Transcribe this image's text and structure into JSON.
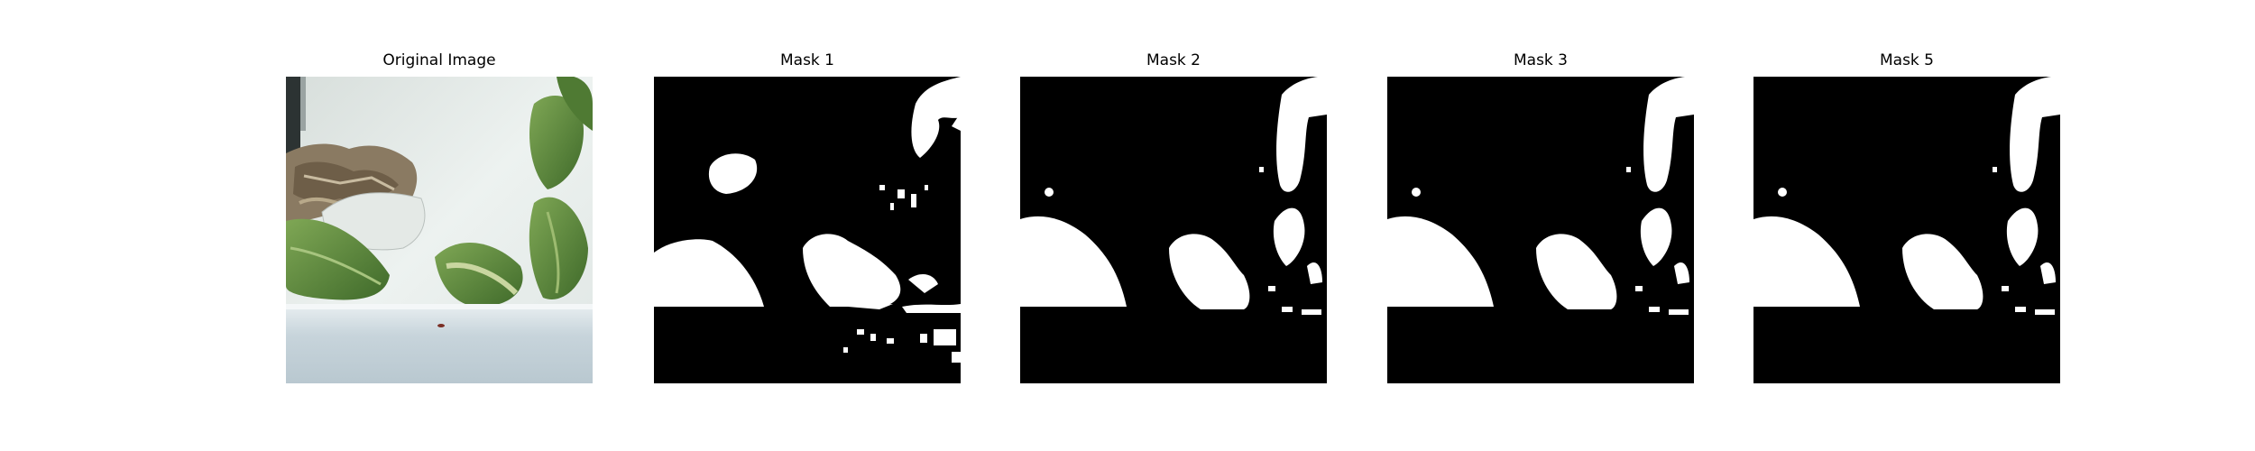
{
  "figure": {
    "panels": [
      {
        "title": "Original Image",
        "kind": "photo"
      },
      {
        "title": "Mask 1",
        "kind": "mask"
      },
      {
        "title": "Mask 2",
        "kind": "mask"
      },
      {
        "title": "Mask 3",
        "kind": "mask"
      },
      {
        "title": "Mask 5",
        "kind": "mask"
      }
    ]
  },
  "colors": {
    "mask_background": "#000000",
    "mask_foreground": "#ffffff",
    "leaf_green": "#5f8a3c",
    "wall_white": "#e6ece9",
    "ledge_gray": "#c9d6dc",
    "dry_leaf_brown": "#8a7a62"
  }
}
